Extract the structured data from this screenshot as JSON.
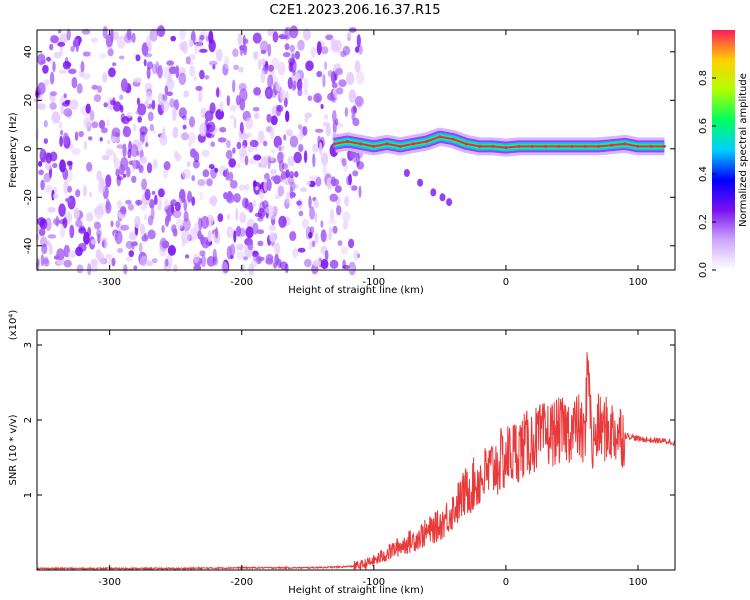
{
  "title": "C2E1.2023.206.16.37.R15",
  "colors": {
    "snr_line": "#e83a3a",
    "spectro_low": "#e6ccff",
    "spectro_mid": "#7a10f0",
    "spectro_high": "#ff1a5a",
    "frame": "#000000"
  },
  "chart_data": [
    {
      "type": "heatmap",
      "title": "",
      "xlabel": "Height of straight line (km)",
      "ylabel": "Frequency (Hz)",
      "xlim": [
        -355,
        128
      ],
      "ylim": [
        -50,
        49
      ],
      "xticks": [
        -300,
        -200,
        -100,
        0,
        100
      ],
      "yticks": [
        -40,
        -20,
        0,
        20,
        40
      ],
      "x_tick_labels": [
        "-300",
        "-200",
        "-100",
        "0",
        "100"
      ],
      "y_tick_labels": [
        "-40",
        "-20",
        "0",
        "20",
        "40"
      ],
      "colorbar": {
        "label": "Normalized spectral amplitude",
        "range": [
          0,
          1
        ],
        "ticks": [
          0.0,
          0.2,
          0.4,
          0.6,
          0.8
        ],
        "tick_labels": [
          "0.0",
          "0.2",
          "0.4",
          "0.6",
          "0.8"
        ],
        "stops": [
          "#ffffff",
          "#cfa6ff",
          "#7a10f0",
          "#0000ff",
          "#00d0ff",
          "#00ff60",
          "#b0ff00",
          "#ffd000",
          "#ff1a5a"
        ]
      },
      "ridge": {
        "x": [
          -130,
          -120,
          -110,
          -100,
          -90,
          -80,
          -70,
          -60,
          -50,
          -40,
          -30,
          -20,
          -10,
          0,
          10,
          20,
          30,
          40,
          50,
          60,
          70,
          80,
          90,
          100,
          110,
          120
        ],
        "y": [
          2,
          3,
          2,
          1,
          2,
          1,
          2,
          3,
          5,
          4,
          2,
          1,
          1,
          0.5,
          1,
          1,
          1,
          1,
          1,
          1,
          1,
          1.5,
          2,
          1,
          1,
          1
        ]
      },
      "branch": {
        "x": [
          -75,
          -65,
          -55,
          -48,
          -43
        ],
        "y": [
          -10,
          -14,
          -18,
          -20,
          -22
        ]
      }
    },
    {
      "type": "line",
      "title": "",
      "xlabel": "Height of straight line (km)",
      "ylabel": "SNR (10 * v/v)",
      "scale_label": "(x10⁴)",
      "xlim": [
        -355,
        128
      ],
      "ylim": [
        0,
        3.2
      ],
      "xticks": [
        -300,
        -200,
        -100,
        0,
        100
      ],
      "yticks": [
        1,
        2,
        3
      ],
      "x_tick_labels": [
        "-300",
        "-200",
        "-100",
        "0",
        "100"
      ],
      "y_tick_labels": [
        "1",
        "2",
        "3"
      ],
      "series": [
        {
          "x": [
            -355,
            -300,
            -250,
            -200,
            -150,
            -125,
            -110,
            -100,
            -90,
            -80,
            -70,
            -60,
            -50,
            -40,
            -30,
            -20,
            -10,
            0,
            10,
            20,
            30,
            40,
            50,
            55,
            60,
            62,
            65,
            70,
            80,
            90,
            100,
            110,
            120,
            128
          ],
          "y": [
            0.02,
            0.02,
            0.02,
            0.03,
            0.03,
            0.04,
            0.06,
            0.12,
            0.22,
            0.32,
            0.4,
            0.5,
            0.6,
            0.8,
            1.05,
            1.2,
            1.35,
            1.5,
            1.62,
            1.72,
            1.8,
            1.85,
            1.88,
            1.92,
            1.7,
            3.0,
            1.6,
            1.9,
            1.85,
            1.8,
            1.75,
            1.73,
            1.72,
            1.7
          ]
        }
      ]
    }
  ]
}
